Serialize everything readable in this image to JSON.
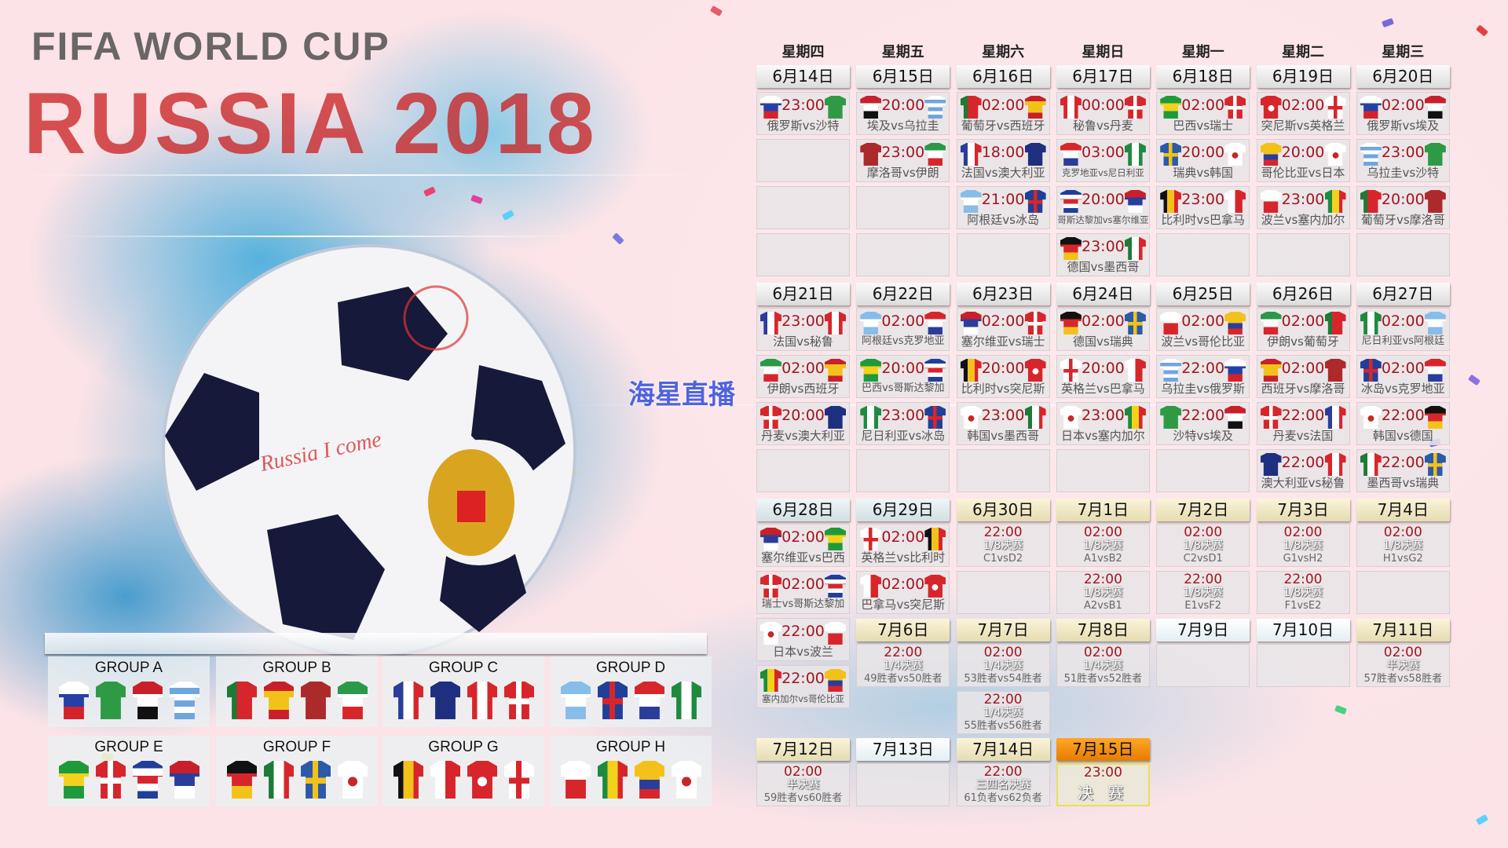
{
  "watermark": "海星直播",
  "logo_text": {
    "fifa": "FIFA WORLD CUP",
    "russia": "RUSSIA 2018",
    "ball": "Russia I come"
  },
  "vs_label": "vs",
  "weekdays": [
    "星期四",
    "星期五",
    "星期六",
    "星期日",
    "星期一",
    "星期二",
    "星期三"
  ],
  "days": [
    {
      "date": "6月14日",
      "kind": "group",
      "matches": [
        {
          "time": "23:00",
          "home": "俄罗斯",
          "away": "沙特"
        }
      ]
    },
    {
      "date": "6月15日",
      "kind": "group",
      "matches": [
        {
          "time": "20:00",
          "home": "埃及",
          "away": "乌拉圭"
        },
        {
          "time": "23:00",
          "home": "摩洛哥",
          "away": "伊朗"
        }
      ]
    },
    {
      "date": "6月16日",
      "kind": "group",
      "matches": [
        {
          "time": "02:00",
          "home": "葡萄牙",
          "away": "西班牙"
        },
        {
          "time": "18:00",
          "home": "法国",
          "away": "澳大利亚"
        },
        {
          "time": "21:00",
          "home": "阿根廷",
          "away": "冰岛"
        }
      ]
    },
    {
      "date": "6月17日",
      "kind": "group",
      "matches": [
        {
          "time": "00:00",
          "home": "秘鲁",
          "away": "丹麦"
        },
        {
          "time": "03:00",
          "home": "克罗地亚",
          "away": "尼日利亚"
        },
        {
          "time": "20:00",
          "home": "哥斯达黎加",
          "away": "塞尔维亚"
        },
        {
          "time": "23:00",
          "home": "德国",
          "away": "墨西哥"
        }
      ]
    },
    {
      "date": "6月18日",
      "kind": "group",
      "matches": [
        {
          "time": "02:00",
          "home": "巴西",
          "away": "瑞士"
        },
        {
          "time": "20:00",
          "home": "瑞典",
          "away": "韩国"
        },
        {
          "time": "23:00",
          "home": "比利时",
          "away": "巴拿马"
        }
      ]
    },
    {
      "date": "6月19日",
      "kind": "group",
      "matches": [
        {
          "time": "02:00",
          "home": "突尼斯",
          "away": "英格兰"
        },
        {
          "time": "20:00",
          "home": "哥伦比亚",
          "away": "日本"
        },
        {
          "time": "23:00",
          "home": "波兰",
          "away": "塞内加尔"
        }
      ]
    },
    {
      "date": "6月20日",
      "kind": "group",
      "matches": [
        {
          "time": "02:00",
          "home": "俄罗斯",
          "away": "埃及"
        },
        {
          "time": "23:00",
          "home": "乌拉圭",
          "away": "沙特"
        },
        {
          "time": "20:00",
          "home": "葡萄牙",
          "away": "摩洛哥"
        }
      ]
    },
    {
      "date": "6月21日",
      "kind": "group",
      "matches": [
        {
          "time": "23:00",
          "home": "法国",
          "away": "秘鲁"
        },
        {
          "time": "02:00",
          "home": "伊朗",
          "away": "西班牙"
        },
        {
          "time": "20:00",
          "home": "丹麦",
          "away": "澳大利亚"
        }
      ]
    },
    {
      "date": "6月22日",
      "kind": "group",
      "matches": [
        {
          "time": "02:00",
          "home": "阿根廷",
          "away": "克罗地亚"
        },
        {
          "time": "20:00",
          "home": "巴西",
          "away": "哥斯达黎加"
        },
        {
          "time": "23:00",
          "home": "尼日利亚",
          "away": "冰岛"
        }
      ]
    },
    {
      "date": "6月23日",
      "kind": "group",
      "matches": [
        {
          "time": "02:00",
          "home": "塞尔维亚",
          "away": "瑞士"
        },
        {
          "time": "20:00",
          "home": "比利时",
          "away": "突尼斯"
        },
        {
          "time": "23:00",
          "home": "韩国",
          "away": "墨西哥"
        }
      ]
    },
    {
      "date": "6月24日",
      "kind": "group",
      "matches": [
        {
          "time": "02:00",
          "home": "德国",
          "away": "瑞典"
        },
        {
          "time": "20:00",
          "home": "英格兰",
          "away": "巴拿马"
        },
        {
          "time": "23:00",
          "home": "日本",
          "away": "塞内加尔"
        }
      ]
    },
    {
      "date": "6月25日",
      "kind": "group",
      "matches": [
        {
          "time": "02:00",
          "home": "波兰",
          "away": "哥伦比亚"
        },
        {
          "time": "22:00",
          "home": "乌拉圭",
          "away": "俄罗斯"
        },
        {
          "time": "22:00",
          "home": "沙特",
          "away": "埃及"
        }
      ]
    },
    {
      "date": "6月26日",
      "kind": "group",
      "matches": [
        {
          "time": "02:00",
          "home": "伊朗",
          "away": "葡萄牙"
        },
        {
          "time": "02:00",
          "home": "西班牙",
          "away": "摩洛哥"
        },
        {
          "time": "22:00",
          "home": "丹麦",
          "away": "法国"
        },
        {
          "time": "22:00",
          "home": "澳大利亚",
          "away": "秘鲁"
        }
      ]
    },
    {
      "date": "6月27日",
      "kind": "group",
      "matches": [
        {
          "time": "02:00",
          "home": "尼日利亚",
          "away": "阿根廷"
        },
        {
          "time": "02:00",
          "home": "冰岛",
          "away": "克罗地亚"
        },
        {
          "time": "22:00",
          "home": "韩国",
          "away": "德国"
        },
        {
          "time": "22:00",
          "home": "墨西哥",
          "away": "瑞典"
        }
      ]
    },
    {
      "date": "6月28日",
      "kind": "late",
      "matches": [
        {
          "time": "02:00",
          "home": "塞尔维亚",
          "away": "巴西"
        },
        {
          "time": "02:00",
          "home": "瑞士",
          "away": "哥斯达黎加"
        },
        {
          "time": "22:00",
          "home": "日本",
          "away": "波兰"
        },
        {
          "time": "22:00",
          "home": "塞内加尔",
          "away": "哥伦比亚"
        }
      ]
    },
    {
      "date": "6月29日",
      "kind": "late",
      "matches": [
        {
          "time": "02:00",
          "home": "英格兰",
          "away": "比利时"
        },
        {
          "time": "02:00",
          "home": "巴拿马",
          "away": "突尼斯"
        }
      ]
    },
    {
      "date": "6月30日",
      "kind": "ko",
      "matches": [
        {
          "time": "22:00",
          "stage": "1/8决赛",
          "pair": "C1vsD2"
        }
      ]
    },
    {
      "date": "7月1日",
      "kind": "ko",
      "matches": [
        {
          "time": "02:00",
          "stage": "1/8决赛",
          "pair": "A1vsB2"
        },
        {
          "time": "22:00",
          "stage": "1/8决赛",
          "pair": "A2vsB1"
        }
      ]
    },
    {
      "date": "7月2日",
      "kind": "ko",
      "matches": [
        {
          "time": "02:00",
          "stage": "1/8决赛",
          "pair": "C2vsD1"
        },
        {
          "time": "22:00",
          "stage": "1/8决赛",
          "pair": "E1vsF2"
        }
      ]
    },
    {
      "date": "7月3日",
      "kind": "ko",
      "matches": [
        {
          "time": "02:00",
          "stage": "1/8决赛",
          "pair": "G1vsH2"
        },
        {
          "time": "22:00",
          "stage": "1/8决赛",
          "pair": "F1vsE2"
        }
      ]
    },
    {
      "date": "7月4日",
      "kind": "ko",
      "matches": [
        {
          "time": "02:00",
          "stage": "1/8决赛",
          "pair": "H1vsG2"
        }
      ]
    },
    {
      "date": "7月6日",
      "kind": "ko",
      "matches": [
        {
          "time": "22:00",
          "stage": "1/4决赛",
          "pair": "49胜者vs50胜者"
        }
      ]
    },
    {
      "date": "7月7日",
      "kind": "ko",
      "matches": [
        {
          "time": "02:00",
          "stage": "1/4决赛",
          "pair": "53胜者vs54胜者"
        },
        {
          "time": "22:00",
          "stage": "1/4决赛",
          "pair": "55胜者vs56胜者"
        }
      ]
    },
    {
      "date": "7月8日",
      "kind": "ko",
      "matches": [
        {
          "time": "02:00",
          "stage": "1/4决赛",
          "pair": "51胜者vs52胜者"
        }
      ]
    },
    {
      "date": "7月9日",
      "kind": "rest",
      "matches": []
    },
    {
      "date": "7月10日",
      "kind": "rest",
      "matches": []
    },
    {
      "date": "7月11日",
      "kind": "ko",
      "matches": [
        {
          "time": "02:00",
          "stage": "半决赛",
          "pair": "57胜者vs58胜者"
        }
      ]
    },
    {
      "date": "7月12日",
      "kind": "ko",
      "matches": [
        {
          "time": "02:00",
          "stage": "半决赛",
          "pair": "59胜者vs60胜者"
        }
      ]
    },
    {
      "date": "7月13日",
      "kind": "rest",
      "matches": []
    },
    {
      "date": "7月14日",
      "kind": "ko",
      "matches": [
        {
          "time": "22:00",
          "stage": "三四名决赛",
          "pair": "61负者vs62负者"
        }
      ]
    },
    {
      "date": "7月15日",
      "kind": "final",
      "matches": [
        {
          "time": "23:00",
          "stage": "决 赛",
          "final": true
        }
      ]
    }
  ],
  "groups": [
    {
      "name": "GROUP A",
      "teams": [
        "俄罗斯",
        "沙特",
        "埃及",
        "乌拉圭"
      ]
    },
    {
      "name": "GROUP B",
      "teams": [
        "葡萄牙",
        "西班牙",
        "摩洛哥",
        "伊朗"
      ]
    },
    {
      "name": "GROUP C",
      "teams": [
        "法国",
        "澳大利亚",
        "秘鲁",
        "丹麦"
      ]
    },
    {
      "name": "GROUP D",
      "teams": [
        "阿根廷",
        "冰岛",
        "克罗地亚",
        "尼日利亚"
      ]
    },
    {
      "name": "GROUP E",
      "teams": [
        "巴西",
        "瑞士",
        "哥斯达黎加",
        "塞尔维亚"
      ]
    },
    {
      "name": "GROUP F",
      "teams": [
        "德国",
        "墨西哥",
        "瑞典",
        "韩国"
      ]
    },
    {
      "name": "GROUP G",
      "teams": [
        "比利时",
        "巴拿马",
        "突尼斯",
        "英格兰"
      ]
    },
    {
      "name": "GROUP H",
      "teams": [
        "波兰",
        "塞内加尔",
        "哥伦比亚",
        "日本"
      ]
    }
  ],
  "team_colors": {
    "俄罗斯": {
      "type": "h",
      "colors": [
        "#ffffff",
        "#2440a8",
        "#d3232a"
      ]
    },
    "沙特": {
      "type": "solid",
      "colors": [
        "#2f9a45"
      ]
    },
    "埃及": {
      "type": "h",
      "colors": [
        "#c8202a",
        "#ffffff",
        "#111111"
      ]
    },
    "乌拉圭": {
      "type": "h",
      "colors": [
        "#ffffff",
        "#6fa6dd",
        "#ffffff",
        "#6fa6dd",
        "#ffffff",
        "#6fa6dd"
      ]
    },
    "葡萄牙": {
      "type": "v",
      "colors": [
        "#1e7a36",
        "#d7262b",
        "#d7262b"
      ]
    },
    "西班牙": {
      "type": "h",
      "colors": [
        "#c8202a",
        "#f2c21b",
        "#f2c21b",
        "#c8202a"
      ]
    },
    "摩洛哥": {
      "type": "solid",
      "colors": [
        "#ad2a2a"
      ]
    },
    "伊朗": {
      "type": "h",
      "colors": [
        "#2a9a48",
        "#ffffff",
        "#d7262b"
      ]
    },
    "法国": {
      "type": "v",
      "colors": [
        "#2a3d9a",
        "#ffffff",
        "#d7262b"
      ]
    },
    "澳大利亚": {
      "type": "solid",
      "colors": [
        "#1f2f80"
      ]
    },
    "秘鲁": {
      "type": "v",
      "colors": [
        "#d7262b",
        "#ffffff",
        "#d7262b"
      ]
    },
    "丹麦": {
      "type": "cross",
      "colors": [
        "#d7262b",
        "#ffffff"
      ]
    },
    "阿根廷": {
      "type": "h",
      "colors": [
        "#86bde9",
        "#ffffff",
        "#86bde9"
      ]
    },
    "冰岛": {
      "type": "cross",
      "colors": [
        "#1f3f9a",
        "#d7262b"
      ]
    },
    "克罗地亚": {
      "type": "h",
      "colors": [
        "#d7262b",
        "#ffffff",
        "#2a3d9a"
      ]
    },
    "尼日利亚": {
      "type": "v",
      "colors": [
        "#1e8a40",
        "#ffffff",
        "#1e8a40"
      ]
    },
    "巴西": {
      "type": "h",
      "colors": [
        "#1f9a3a",
        "#f2d21b",
        "#1f9a3a"
      ]
    },
    "瑞士": {
      "type": "cross",
      "colors": [
        "#d7262b",
        "#ffffff"
      ]
    },
    "哥斯达黎加": {
      "type": "h",
      "colors": [
        "#1f3f9a",
        "#ffffff",
        "#d7262b",
        "#ffffff",
        "#1f3f9a"
      ]
    },
    "塞尔维亚": {
      "type": "h",
      "colors": [
        "#c8202a",
        "#2a3d9a",
        "#ffffff"
      ]
    },
    "德国": {
      "type": "h",
      "colors": [
        "#111111",
        "#d7262b",
        "#f2c21b"
      ]
    },
    "墨西哥": {
      "type": "v",
      "colors": [
        "#1e7a36",
        "#ffffff",
        "#d7262b"
      ]
    },
    "瑞典": {
      "type": "cross",
      "colors": [
        "#2a5aa8",
        "#f2c21b"
      ]
    },
    "韩国": {
      "type": "dot",
      "colors": [
        "#ffffff",
        "#c62828"
      ]
    },
    "比利时": {
      "type": "v",
      "colors": [
        "#111111",
        "#f2c21b",
        "#d7262b"
      ]
    },
    "巴拿马": {
      "type": "v",
      "colors": [
        "#ffffff",
        "#d7262b"
      ]
    },
    "突尼斯": {
      "type": "dot",
      "colors": [
        "#d7262b",
        "#ffffff"
      ]
    },
    "英格兰": {
      "type": "cross",
      "colors": [
        "#ffffff",
        "#d7262b"
      ]
    },
    "哥伦比亚": {
      "type": "h",
      "colors": [
        "#f2c21b",
        "#f2c21b",
        "#2a3d9a",
        "#d7262b"
      ]
    },
    "日本": {
      "type": "dot",
      "colors": [
        "#ffffff",
        "#c62828"
      ]
    },
    "波兰": {
      "type": "h",
      "colors": [
        "#ffffff",
        "#d7262b"
      ]
    },
    "塞内加尔": {
      "type": "v",
      "colors": [
        "#1e8a40",
        "#f2d21b",
        "#d7262b"
      ]
    }
  }
}
